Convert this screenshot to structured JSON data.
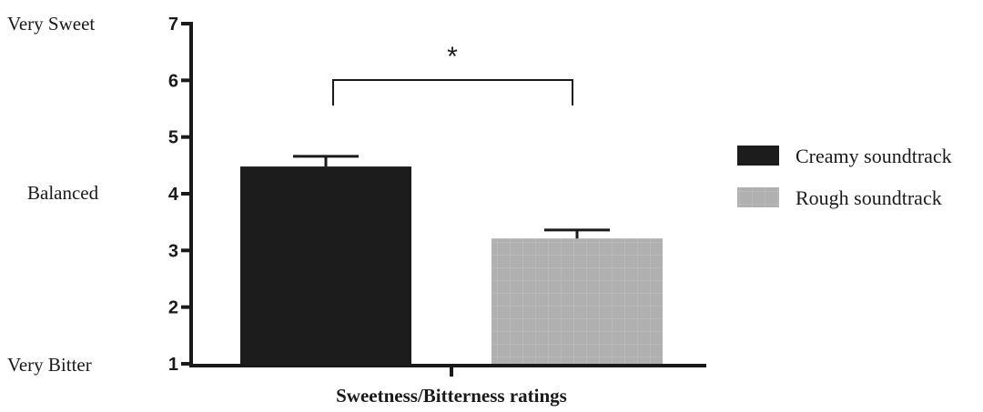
{
  "chart_data": {
    "type": "bar",
    "xlabel": "Sweetness/Bitterness ratings",
    "ylim": [
      1,
      7
    ],
    "yticks": [
      1,
      2,
      3,
      4,
      5,
      6,
      7
    ],
    "scale_labels": {
      "high": "Very Sweet",
      "mid": "Balanced",
      "low": "Very Bitter"
    },
    "series": [
      {
        "name": "Creamy soundtrack",
        "value": 4.48,
        "error": 0.18,
        "color": "#1c1c1c"
      },
      {
        "name": "Rough soundtrack",
        "value": 3.21,
        "error": 0.15,
        "color": "#b0b0b0"
      }
    ],
    "significance": "*",
    "legend_position": "right",
    "grid": false
  }
}
